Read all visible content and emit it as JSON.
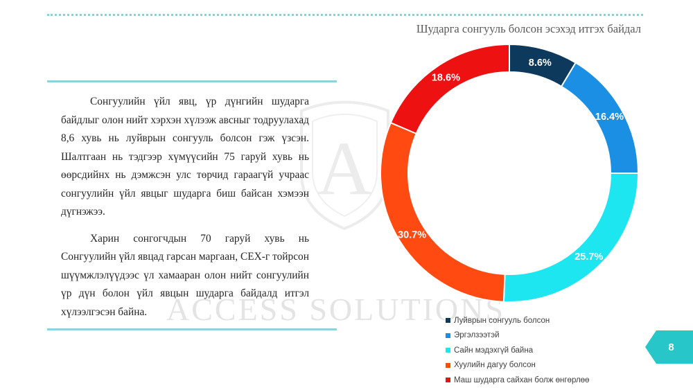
{
  "paragraphs": [
    "Сонгуулийн үйл явц, үр дүнгийн шударга байдлыг олон нийт хэрхэн хүлээж авсныг тодруулахад  8,6 хувь нь луйврын сонгууль болсон гэж үзсэн. Шалтгаан нь тэдгээр хүмүүсийн 75 гаруй хувь нь өөрсдийнх нь дэмжсэн улс төрчид гараагүй учраас сонгуулийн үйл явцыг шударга биш байсан хэмээн дүгнэжээ.",
    "Харин сонгогчдын 70 гаруй хувь нь Сонгуулийн үйл явцад гарсан маргаан, СЕХ-г тойрсон шүүмжлэлүүдээс үл хамааран олон нийт сонгуулийн үр дүн болон үйл явцын шударга байдалд итгэл хүлээлгэсэн байна."
  ],
  "watermark": "ACCESS SOLUTIONS",
  "page_number": "8",
  "colors": {
    "accent_rule": "#8ed3dc",
    "dots": "#7fd6d8",
    "badge": "#26c6c9"
  },
  "chart_data": {
    "type": "pie",
    "style": "donut",
    "title": "Шударга сонгууль болсон эсэхэд итгэх байдал",
    "legend_position": "bottom",
    "categories": [
      "Луйврын сонгууль болсон",
      "Эргэлзээтэй",
      "Сайн мэдэхгүй байна",
      "Хуулийн дагуу болсон",
      "Маш шударга сайхан болж өнгөрлөө"
    ],
    "values": [
      8.6,
      16.4,
      25.7,
      30.7,
      18.6
    ],
    "labels": [
      "8.6%",
      "16.4%",
      "25.7%",
      "30.7%",
      "18.6%"
    ],
    "colors": [
      "#0d3a5c",
      "#1a8fe3",
      "#1ee6f0",
      "#ff4a12",
      "#ee1111"
    ]
  }
}
